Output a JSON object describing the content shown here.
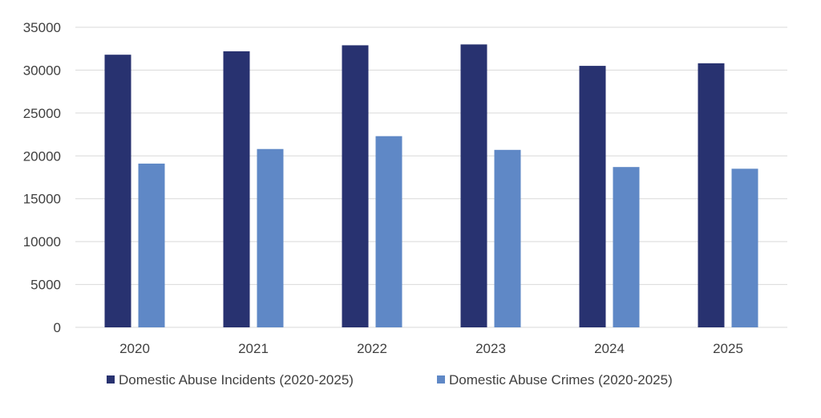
{
  "chart_data": {
    "type": "bar",
    "categories": [
      "2020",
      "2021",
      "2022",
      "2023",
      "2024",
      "2025"
    ],
    "series": [
      {
        "name": "Domestic Abuse Incidents (2020-2025)",
        "color": "#283270",
        "values": [
          31800,
          32200,
          32900,
          33000,
          30500,
          30800
        ]
      },
      {
        "name": "Domestic Abuse Crimes (2020-2025)",
        "color": "#5F88C6",
        "values": [
          19100,
          20800,
          22300,
          20700,
          18700,
          18500
        ]
      }
    ],
    "y_ticks": [
      "0",
      "5000",
      "10000",
      "15000",
      "20000",
      "25000",
      "30000",
      "35000"
    ],
    "ylim": [
      0,
      35000
    ],
    "grid": true,
    "legend_position": "bottom",
    "gridline_color": "#D9D9D9",
    "text_color": "#404040"
  }
}
